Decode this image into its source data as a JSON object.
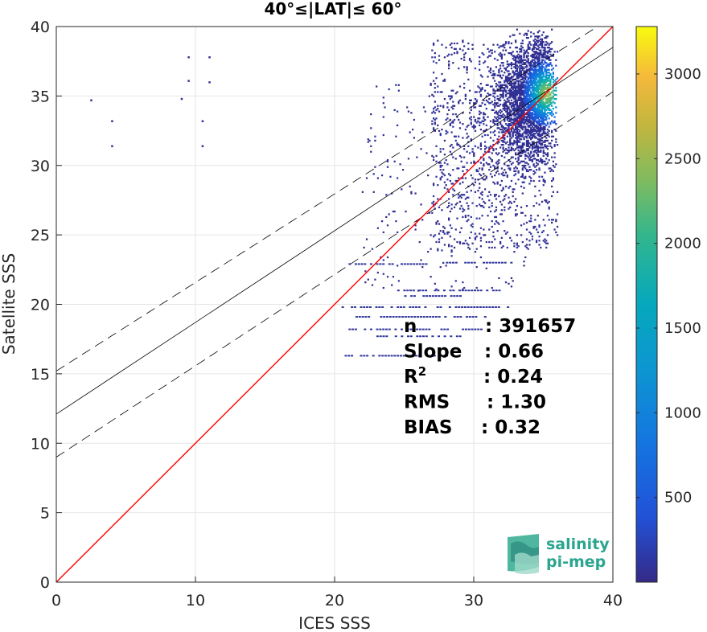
{
  "chart_data": {
    "type": "heatmap",
    "title": "40°≤|LAT|≤ 60°",
    "xlabel": "ICES SSS",
    "ylabel": "Satellite SSS",
    "xlim": [
      0,
      40
    ],
    "ylim": [
      0,
      40
    ],
    "xticks": [
      "0",
      "10",
      "20",
      "30",
      "40"
    ],
    "yticks": [
      "0",
      "5",
      "10",
      "15",
      "20",
      "25",
      "30",
      "35",
      "40"
    ],
    "grid": true,
    "stats": [
      {
        "key": "n",
        "value": ": 391657"
      },
      {
        "key": "Slope",
        "value": ": 0.66"
      },
      {
        "key": "R",
        "sup": "2",
        "value": ": 0.24"
      },
      {
        "key": "RMS",
        "value": ": 1.30"
      },
      {
        "key": "BIAS",
        "value": ": 0.32"
      }
    ],
    "lines": {
      "identity": {
        "color": "#ff0000",
        "from": [
          0,
          0
        ],
        "to": [
          40,
          40
        ]
      },
      "fit": {
        "color": "#000000",
        "from": [
          0,
          12.1
        ],
        "to": [
          40,
          38.5
        ]
      },
      "upper_dashed": {
        "from": [
          0,
          15.2
        ],
        "to": [
          40,
          40.7
        ]
      },
      "lower_dashed": {
        "from": [
          0,
          9.0
        ],
        "to": [
          40,
          35.3
        ]
      }
    },
    "density_peak": {
      "x": 35.2,
      "y": 35.2,
      "count": 3300
    },
    "colorbar": {
      "range": [
        0,
        3280
      ],
      "ticks": [
        "500",
        "1000",
        "1500",
        "2000",
        "2500",
        "3000"
      ],
      "colormap": "parula"
    },
    "outliers": [
      [
        2.5,
        34.7
      ],
      [
        4,
        33.2
      ],
      [
        4,
        31.4
      ],
      [
        9.5,
        37.8
      ],
      [
        9.5,
        36.1
      ],
      [
        10.5,
        33.2
      ],
      [
        10.5,
        31.4
      ],
      [
        11,
        36.0
      ],
      [
        11,
        37.8
      ],
      [
        9.0,
        34.8
      ]
    ],
    "horizontal_streaks": [
      {
        "y": 19.8,
        "x0": 20.5,
        "x1": 32.5
      },
      {
        "y": 19.1,
        "x0": 21.5,
        "x1": 31.0
      },
      {
        "y": 18.2,
        "x0": 21.0,
        "x1": 30.5
      },
      {
        "y": 17.7,
        "x0": 23.0,
        "x1": 29.0
      },
      {
        "y": 16.3,
        "x0": 20.5,
        "x1": 28.0
      },
      {
        "y": 21.0,
        "x0": 24.5,
        "x1": 32.0
      },
      {
        "y": 22.9,
        "x0": 21.0,
        "x1": 26.5
      },
      {
        "y": 23.0,
        "x0": 28.0,
        "x1": 33.0
      },
      {
        "y": 20.6,
        "x0": 25.0,
        "x1": 29.0
      }
    ]
  },
  "logo": {
    "line1": "salinity",
    "line2": "pi-mep"
  }
}
